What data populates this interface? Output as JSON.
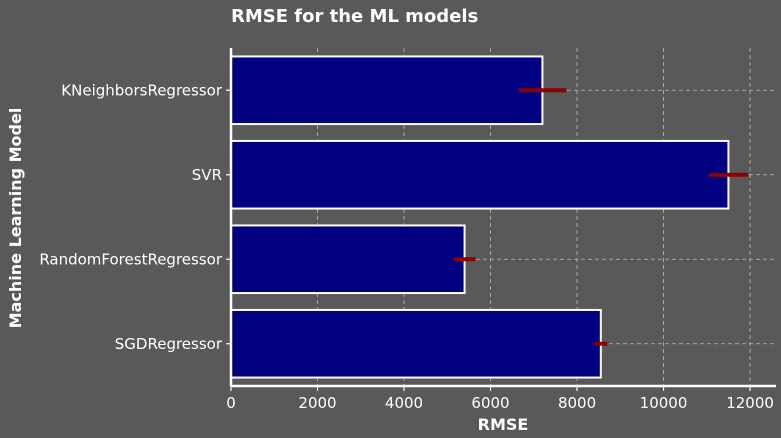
{
  "chart_data": {
    "type": "bar",
    "orientation": "horizontal",
    "title": "RMSE for the ML models",
    "xlabel": "RMSE",
    "ylabel": "Machine Learning Model",
    "categories": [
      "KNeighborsRegressor",
      "SVR",
      "RandomForestRegressor",
      "SGDRegressor"
    ],
    "values": [
      7200,
      11500,
      5400,
      8550
    ],
    "errors": [
      550,
      450,
      250,
      150
    ],
    "xlim": [
      0,
      12600
    ],
    "xticks": [
      0,
      2000,
      4000,
      6000,
      8000,
      10000,
      12000
    ],
    "grid": true,
    "colors": {
      "background": "#595959",
      "bar_fill": "#000080",
      "bar_edge": "#ffffff",
      "error_bar": "#8b0000",
      "grid": "#bbbbbb",
      "text": "#ffffff"
    }
  }
}
